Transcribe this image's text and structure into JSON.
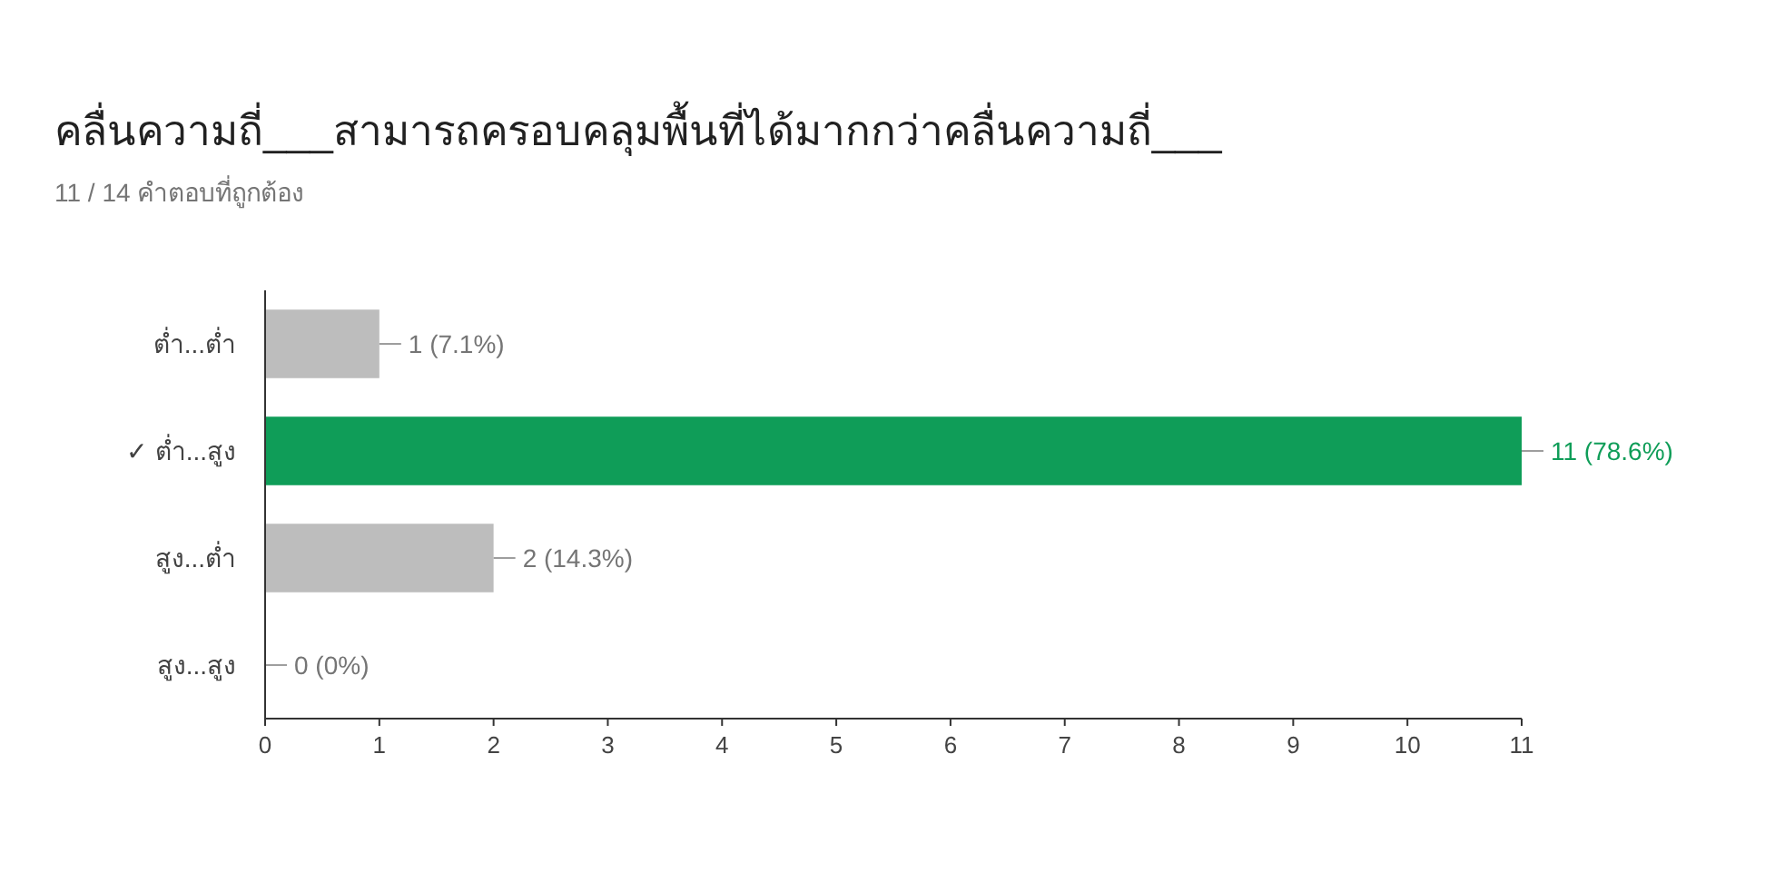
{
  "chart_data": {
    "type": "bar",
    "orientation": "horizontal",
    "title": "คลื่นความถี่___สามารถครอบคลุมพื้นที่ได้มากกว่าคลื่นความถี่___",
    "subtitle": "11 / 14 คำตอบที่ถูกต้อง",
    "categories": [
      "ต่ำ...ต่ำ",
      "✓ ต่ำ...สูง",
      "สูง...ต่ำ",
      "สูง...สูง"
    ],
    "values": [
      1,
      11,
      2,
      0
    ],
    "value_labels": [
      "1 (7.1%)",
      "11 (78.6%)",
      "2 (14.3%)",
      "0 (0%)"
    ],
    "colors": [
      "#bdbdbd",
      "#0f9d58",
      "#bdbdbd",
      "#bdbdbd"
    ],
    "xlim": [
      0,
      11
    ],
    "xticks": [
      0,
      1,
      2,
      3,
      4,
      5,
      6,
      7,
      8,
      9,
      10,
      11
    ]
  }
}
